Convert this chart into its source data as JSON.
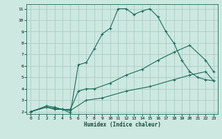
{
  "xlabel": "Humidex (Indice chaleur)",
  "background_color": "#cce8e0",
  "grid_color": "#aaccc4",
  "line_color": "#1a6b5a",
  "xlim": [
    -0.5,
    23.5
  ],
  "ylim": [
    1.8,
    11.4
  ],
  "xticks": [
    0,
    1,
    2,
    3,
    4,
    5,
    6,
    7,
    8,
    9,
    10,
    11,
    12,
    13,
    14,
    15,
    16,
    17,
    18,
    19,
    20,
    21,
    22,
    23
  ],
  "yticks": [
    2,
    3,
    4,
    5,
    6,
    7,
    8,
    9,
    10,
    11
  ],
  "curves": [
    {
      "x": [
        0,
        2,
        3,
        4,
        5,
        6,
        7,
        8,
        9,
        10,
        11,
        12,
        13,
        14,
        15,
        16,
        17,
        18,
        19,
        20,
        21,
        22,
        23
      ],
      "y": [
        2,
        2.5,
        2.4,
        2.2,
        1.9,
        6.1,
        6.3,
        7.5,
        8.8,
        9.3,
        11.0,
        11.0,
        10.5,
        10.8,
        11.0,
        10.3,
        9.0,
        8.0,
        6.5,
        5.5,
        5.0,
        4.8,
        4.7
      ]
    },
    {
      "x": [
        0,
        2,
        3,
        4,
        5,
        6,
        7,
        8,
        10,
        12,
        14,
        16,
        18,
        20,
        22,
        23
      ],
      "y": [
        2,
        2.4,
        2.2,
        2.2,
        2.2,
        3.8,
        4.0,
        4.0,
        4.5,
        5.2,
        5.7,
        6.5,
        7.2,
        7.8,
        6.5,
        5.5
      ]
    },
    {
      "x": [
        0,
        2,
        3,
        4,
        5,
        7,
        9,
        12,
        15,
        18,
        20,
        22,
        23
      ],
      "y": [
        2,
        2.4,
        2.3,
        2.2,
        2.1,
        3.0,
        3.2,
        3.8,
        4.2,
        4.8,
        5.2,
        5.5,
        4.7
      ]
    }
  ]
}
